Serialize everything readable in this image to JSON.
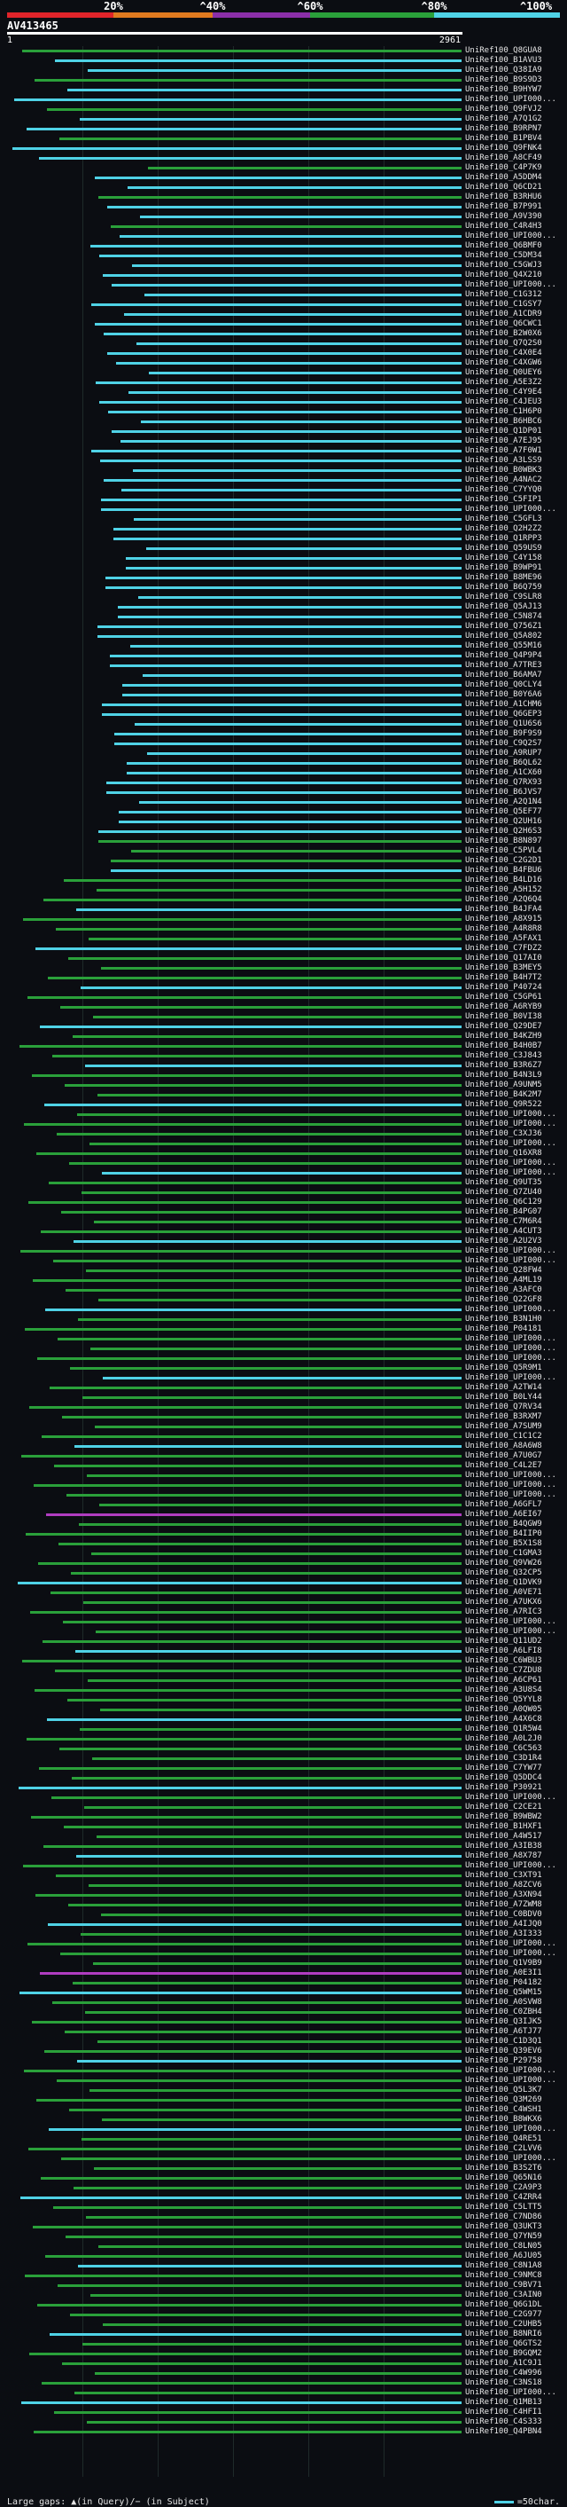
{
  "legend": {
    "labels": [
      "20%",
      "^40%",
      "^60%",
      "^80%",
      "^100%"
    ],
    "segments": [
      {
        "color": "#e0242a"
      },
      {
        "color": "#e07a1f"
      },
      {
        "color": "#8b2fa8"
      },
      {
        "color": "#2aa03a"
      },
      {
        "color": "#4fd2e6"
      }
    ]
  },
  "query": {
    "id": "AV413465",
    "start": "1",
    "end": "2961"
  },
  "hits": [
    "UniRef100_Q8GUA8",
    "UniRef100_B1AVU3",
    "UniRef100_Q38IA9",
    "UniRef100_B9S9D3",
    "UniRef100_B9HYW7",
    "UniRef100_UPI000...",
    "UniRef100_Q9FVJ2",
    "UniRef100_A7Q1G2",
    "UniRef100_B9RPN7",
    "UniRef100_B1PBV4",
    "UniRef100_Q9FNK4",
    "UniRef100_A8CF49",
    "UniRef100_C4P7K9",
    "UniRef100_A5DDM4",
    "UniRef100_Q6CD21",
    "UniRef100_B3RHU6",
    "UniRef100_B7P991",
    "UniRef100_A9V390",
    "UniRef100_C4R4H3",
    "UniRef100_UPI000...",
    "UniRef100_Q6BMF0",
    "UniRef100_C5DM34",
    "UniRef100_C5GWJ3",
    "UniRef100_Q4X210",
    "UniRef100_UPI000...",
    "UniRef100_C1G312",
    "UniRef100_C1GSY7",
    "UniRef100_A1CDR9",
    "UniRef100_Q6CWC1",
    "UniRef100_B2W0X6",
    "UniRef100_Q7Q2S0",
    "UniRef100_C4X0E4",
    "UniRef100_C4XGW6",
    "UniRef100_Q0UEY6",
    "UniRef100_A5E3Z2",
    "UniRef100_C4Y9E4",
    "UniRef100_C4JEU3",
    "UniRef100_C1H6P0",
    "UniRef100_B6HBC6",
    "UniRef100_Q1DP01",
    "UniRef100_A7EJ95",
    "UniRef100_A7F0W1",
    "UniRef100_A3LSS9",
    "UniRef100_B0WBK3",
    "UniRef100_A4NAC2",
    "UniRef100_C7YYQ0",
    "UniRef100_C5FIP1",
    "UniRef100_UPI000...",
    "UniRef100_C5GFL3",
    "UniRef100_Q2H2Z2",
    "UniRef100_Q1RPP3",
    "UniRef100_Q59US9",
    "UniRef100_C4Y158",
    "UniRef100_B9WP91",
    "UniRef100_B8ME96",
    "UniRef100_B6Q759",
    "UniRef100_C9SLR8",
    "UniRef100_Q5AJ13",
    "UniRef100_C5N874",
    "UniRef100_Q756Z1",
    "UniRef100_Q5A802",
    "UniRef100_Q55M16",
    "UniRef100_Q4P9P4",
    "UniRef100_A7TRE3",
    "UniRef100_B6AMA7",
    "UniRef100_Q0CLY4",
    "UniRef100_B0Y6A6",
    "UniRef100_A1CHM6",
    "UniRef100_Q6GEP3",
    "UniRef100_Q1U6S6",
    "UniRef100_B9F9S9",
    "UniRef100_C9Q2S7",
    "UniRef100_A9RUP7",
    "UniRef100_B6QL62",
    "UniRef100_A1CX60",
    "UniRef100_Q7RX93",
    "UniRef100_B6JVS7",
    "UniRef100_A2Q1N4",
    "UniRef100_Q5EF77",
    "UniRef100_Q2UH16",
    "UniRef100_Q2H6S3",
    "UniRef100_B8N897",
    "UniRef100_C5PVL4",
    "UniRef100_C2G2D1",
    "UniRef100_B4FBU6",
    "UniRef100_B4LD16",
    "UniRef100_A5H152",
    "UniRef100_A2Q6Q4",
    "UniRef100_B4JFA4",
    "UniRef100_A8X915",
    "UniRef100_A4R8R8",
    "UniRef100_A5FAX1",
    "UniRef100_C7FDZ2",
    "UniRef100_Q17AI0",
    "UniRef100_B3MEY5",
    "UniRef100_B4H7T2",
    "UniRef100_P40724",
    "UniRef100_C5GP61",
    "UniRef100_A6RYB9",
    "UniRef100_B0VI38",
    "UniRef100_Q29DE7",
    "UniRef100_B4KZH9",
    "UniRef100_B4H0B7",
    "UniRef100_C3J843",
    "UniRef100_B3R6Z7",
    "UniRef100_B4N3L9",
    "UniRef100_A9UNM5",
    "UniRef100_B4K2M7",
    "UniRef100_Q9R522",
    "UniRef100_UPI000...",
    "UniRef100_UPI000...",
    "UniRef100_C3XJ36",
    "UniRef100_UPI000...",
    "UniRef100_Q16XR8",
    "UniRef100_UPI000...",
    "UniRef100_UPI000...",
    "UniRef100_Q9UT35",
    "UniRef100_Q7ZU40",
    "UniRef100_Q6C129",
    "UniRef100_B4PG07",
    "UniRef100_C7M6R4",
    "UniRef100_A4CUT3",
    "UniRef100_A2U2V3",
    "UniRef100_UPI000...",
    "UniRef100_UPI000...",
    "UniRef100_Q28FW4",
    "UniRef100_A4ML19",
    "UniRef100_A3AFC0",
    "UniRef100_Q22GF8",
    "UniRef100_UPI000...",
    "UniRef100_B3N1H0",
    "UniRef100_P04181",
    "UniRef100_UPI000...",
    "UniRef100_UPI000...",
    "UniRef100_UPI000...",
    "UniRef100_Q5R9M1",
    "UniRef100_UPI000...",
    "UniRef100_A2TW14",
    "UniRef100_B0LY44",
    "UniRef100_Q7RV34",
    "UniRef100_B3RXM7",
    "UniRef100_A7SUM9",
    "UniRef100_C1C1C2",
    "UniRef100_A8A6W8",
    "UniRef100_A7U0G7",
    "UniRef100_C4L2E7",
    "UniRef100_UPI000...",
    "UniRef100_UPI000...",
    "UniRef100_UPI000...",
    "UniRef100_A6GFL7",
    "UniRef100_A6EI67",
    "UniRef100_B4QGW9",
    "UniRef100_B4IIP0",
    "UniRef100_B5X1S8",
    "UniRef100_C1GMA3",
    "UniRef100_Q9VW26",
    "UniRef100_Q32CP5",
    "UniRef100_Q1DVK9",
    "UniRef100_A0VE71",
    "UniRef100_A7UKX6",
    "UniRef100_A7RIC3",
    "UniRef100_UPI000...",
    "UniRef100_UPI000...",
    "UniRef100_Q11UD2",
    "UniRef100_A6LFI8",
    "UniRef100_C6WBU3",
    "UniRef100_C7ZDU8",
    "UniRef100_A6CP61",
    "UniRef100_A3U8S4",
    "UniRef100_Q5YYL8",
    "UniRef100_A0QW05",
    "UniRef100_A4X6C8",
    "UniRef100_Q1R5W4",
    "UniRef100_A0L2J0",
    "UniRef100_C6C563",
    "UniRef100_C3D1R4",
    "UniRef100_C7YW77",
    "UniRef100_Q5DDC4",
    "UniRef100_P30921",
    "UniRef100_UPI000...",
    "UniRef100_C2CE21",
    "UniRef100_B9WBW2",
    "UniRef100_B1HXF1",
    "UniRef100_A4W517",
    "UniRef100_A3IB38",
    "UniRef100_A8X787",
    "UniRef100_UPI000...",
    "UniRef100_C3XT91",
    "UniRef100_A8ZCV6",
    "UniRef100_A3XN94",
    "UniRef100_A7ZWM8",
    "UniRef100_C0BDV0",
    "UniRef100_A4IJQ0",
    "UniRef100_A3I333",
    "UniRef100_UPI000...",
    "UniRef100_UPI000...",
    "UniRef100_Q1V9B9",
    "UniRef100_A0E3I1",
    "UniRef100_P04182",
    "UniRef100_Q5WM15",
    "UniRef100_A0SVW8",
    "UniRef100_C0ZBH4",
    "UniRef100_Q3IJK5",
    "UniRef100_A6TJ77",
    "UniRef100_C1D3Q1",
    "UniRef100_Q39EV6",
    "UniRef100_P29758",
    "UniRef100_UPI000...",
    "UniRef100_UPI000...",
    "UniRef100_Q5L3K7",
    "UniRef100_Q3M269",
    "UniRef100_C4WSH1",
    "UniRef100_B8WKX6",
    "UniRef100_UPI000...",
    "UniRef100_Q4RE51",
    "UniRef100_C2LVV6",
    "UniRef100_UPI000...",
    "UniRef100_B3S2T6",
    "UniRef100_Q65N16",
    "UniRef100_C2A9P3",
    "UniRef100_C4ZRR4",
    "UniRef100_C5LTT5",
    "UniRef100_C7ND86",
    "UniRef100_Q3UKT3",
    "UniRef100_Q7YN59",
    "UniRef100_C8LN05",
    "UniRef100_A6JU05",
    "UniRef100_C8N1A8",
    "UniRef100_C9NMC8",
    "UniRef100_C9BV71",
    "UniRef100_C3AIN0",
    "UniRef100_Q6G1DL",
    "UniRef100_C2G977",
    "UniRef100_C2UHB5",
    "UniRef100_B8NRI6",
    "UniRef100_Q6GTS2",
    "UniRef100_B9GQM2",
    "UniRef100_A1C9J1",
    "UniRef100_C4W996",
    "UniRef100_C3NS18",
    "UniRef100_UPI000...",
    "UniRef100_Q1MB13",
    "UniRef100_C4HFI1",
    "UniRef100_C4S333",
    "UniRef100_Q4PBN4"
  ],
  "footer": {
    "left": "Large gaps: ▲(in Query)/− (in Subject)",
    "right": "=50char."
  }
}
